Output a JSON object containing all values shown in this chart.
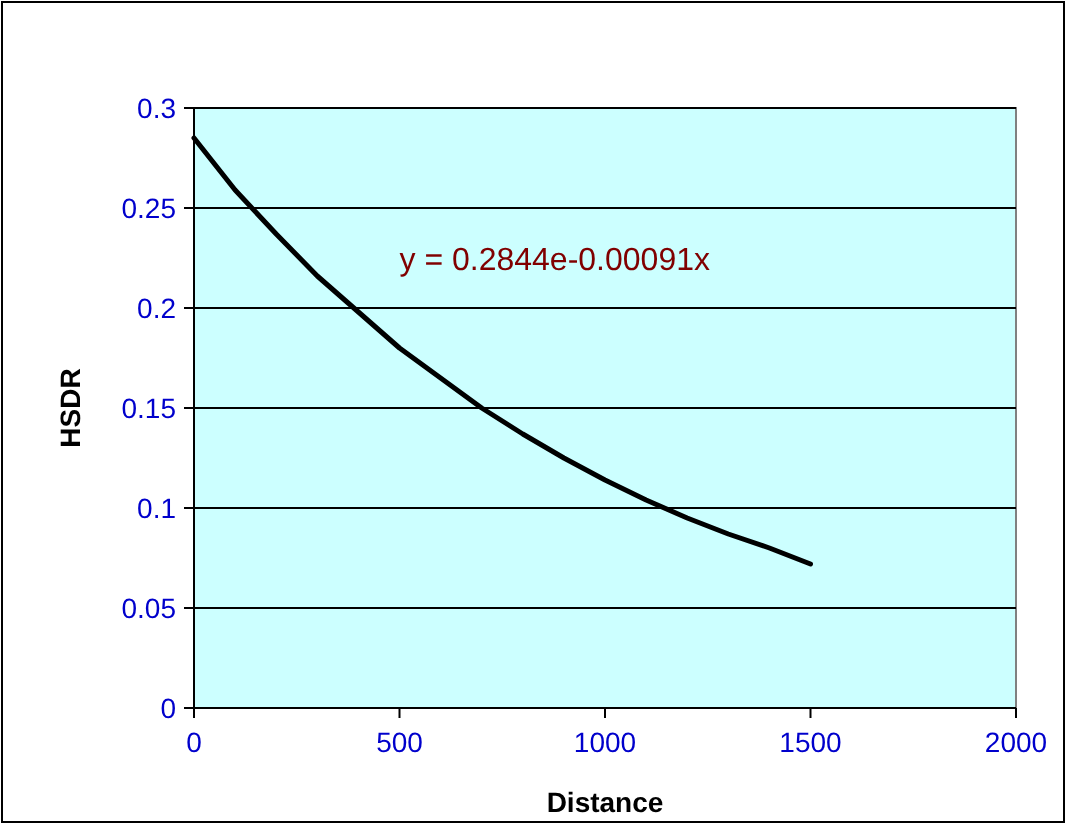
{
  "chart_data": {
    "type": "line",
    "xlabel": "Distance",
    "ylabel": "HSDR",
    "x": [
      0,
      100,
      200,
      300,
      400,
      500,
      600,
      700,
      800,
      900,
      1000,
      1100,
      1200,
      1300,
      1400,
      1500
    ],
    "series": [
      {
        "color": "#000000",
        "values": [
          0.285,
          0.259,
          0.237,
          0.216,
          0.198,
          0.18,
          0.165,
          0.15,
          0.137,
          0.125,
          0.114,
          0.104,
          0.095,
          0.087,
          0.08,
          0.072
        ]
      }
    ],
    "xlim": [
      0,
      2000
    ],
    "xticks": [
      0,
      500,
      1000,
      1500,
      2000
    ],
    "ylim": [
      0,
      0.3
    ],
    "yticks": [
      0,
      0.05,
      0.1,
      0.15,
      0.2,
      0.25,
      0.3
    ],
    "grid": "y",
    "marker": "none",
    "line_style": "solid",
    "annotations": [
      "y = 0.2844e-0.00091x"
    ]
  }
}
